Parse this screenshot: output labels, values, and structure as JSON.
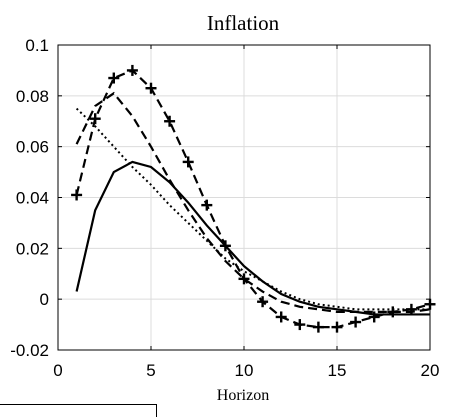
{
  "chart_data": {
    "type": "line",
    "title": "Inflation",
    "xlabel": "Horizon",
    "ylabel": "",
    "xlim": [
      0,
      20
    ],
    "ylim": [
      -0.02,
      0.1
    ],
    "xticks": [
      0,
      5,
      10,
      15,
      20
    ],
    "xtick_labels": [
      "0",
      "5",
      "10",
      "15",
      "20"
    ],
    "yticks": [
      -0.02,
      0,
      0.02,
      0.04,
      0.06,
      0.08,
      0.1
    ],
    "ytick_labels": [
      "-0.02",
      "0",
      "0.02",
      "0.04",
      "0.06",
      "0.08",
      "0.1"
    ],
    "grid": true,
    "x": [
      1,
      2,
      3,
      4,
      5,
      6,
      7,
      8,
      9,
      10,
      11,
      12,
      13,
      14,
      15,
      16,
      17,
      18,
      19,
      20
    ],
    "series": [
      {
        "style": "solid",
        "color": "#000000",
        "marker": "none",
        "values": [
          0.003,
          0.035,
          0.05,
          0.054,
          0.052,
          0.046,
          0.038,
          0.029,
          0.021,
          0.013,
          0.007,
          0.002,
          -0.001,
          -0.003,
          -0.004,
          -0.005,
          -0.006,
          -0.006,
          -0.006,
          -0.006
        ]
      },
      {
        "style": "dashed",
        "color": "#000000",
        "marker": "none",
        "values": [
          0.061,
          0.076,
          0.081,
          0.072,
          0.06,
          0.047,
          0.035,
          0.024,
          0.015,
          0.008,
          0.003,
          -0.001,
          -0.003,
          -0.004,
          -0.005,
          -0.005,
          -0.005,
          -0.005,
          -0.005,
          -0.004
        ]
      },
      {
        "style": "dotted",
        "color": "#000000",
        "marker": "none",
        "values": [
          0.075,
          0.068,
          0.06,
          0.052,
          0.045,
          0.037,
          0.03,
          0.023,
          0.016,
          0.011,
          0.007,
          0.003,
          0.0,
          -0.002,
          -0.003,
          -0.004,
          -0.004,
          -0.004,
          -0.004,
          -0.004
        ]
      },
      {
        "style": "dashed",
        "color": "#000000",
        "marker": "plus",
        "values": [
          0.041,
          0.071,
          0.087,
          0.09,
          0.083,
          0.07,
          0.054,
          0.037,
          0.021,
          0.008,
          -0.001,
          -0.007,
          -0.01,
          -0.011,
          -0.011,
          -0.009,
          -0.007,
          -0.005,
          -0.004,
          -0.002
        ]
      }
    ]
  }
}
